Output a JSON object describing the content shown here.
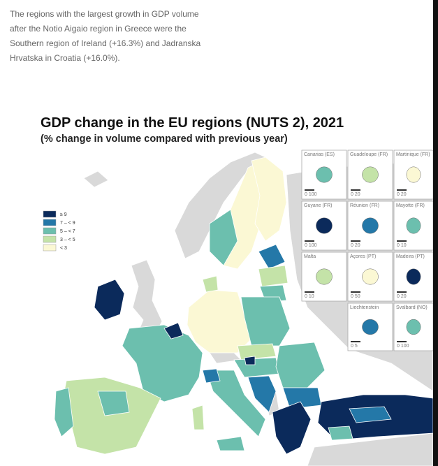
{
  "intro": "The regions with the largest growth in GDP volume after the Notio Aigaio region in Greece were the Southern region of Ireland (+16.3%) and Jadranska Hrvatska in Croatia (+16.0%).",
  "map": {
    "title": "GDP change in the EU regions (NUTS 2), 2021",
    "subtitle": "(% change in volume compared with previous year)",
    "legend": [
      {
        "label": "≥ 9",
        "color": "#0b2a5b"
      },
      {
        "label": "7 – < 9",
        "color": "#2478a8"
      },
      {
        "label": "5 – < 7",
        "color": "#6cbfae"
      },
      {
        "label": "3 – < 5",
        "color": "#c4e3a8"
      },
      {
        "label": "< 3",
        "color": "#fbf8d4"
      }
    ],
    "insets": [
      {
        "name": "Canarias (ES)",
        "scale": "0  100"
      },
      {
        "name": "Guadeloupe (FR)",
        "scale": "0  20"
      },
      {
        "name": "Martinique (FR)",
        "scale": "0  20"
      },
      {
        "name": "Guyane (FR)",
        "scale": "0  100"
      },
      {
        "name": "Réunion (FR)",
        "scale": "0  20"
      },
      {
        "name": "Mayotte (FR)",
        "scale": "0  10"
      },
      {
        "name": "Malta",
        "scale": "0  10"
      },
      {
        "name": "Açores (PT)",
        "scale": "0  50"
      },
      {
        "name": "Madeira (PT)",
        "scale": "0  20"
      },
      {
        "name": "Liechtenstein",
        "scale": "0  5"
      },
      {
        "name": "Svalbard (NO)",
        "scale": "0  100"
      }
    ]
  }
}
